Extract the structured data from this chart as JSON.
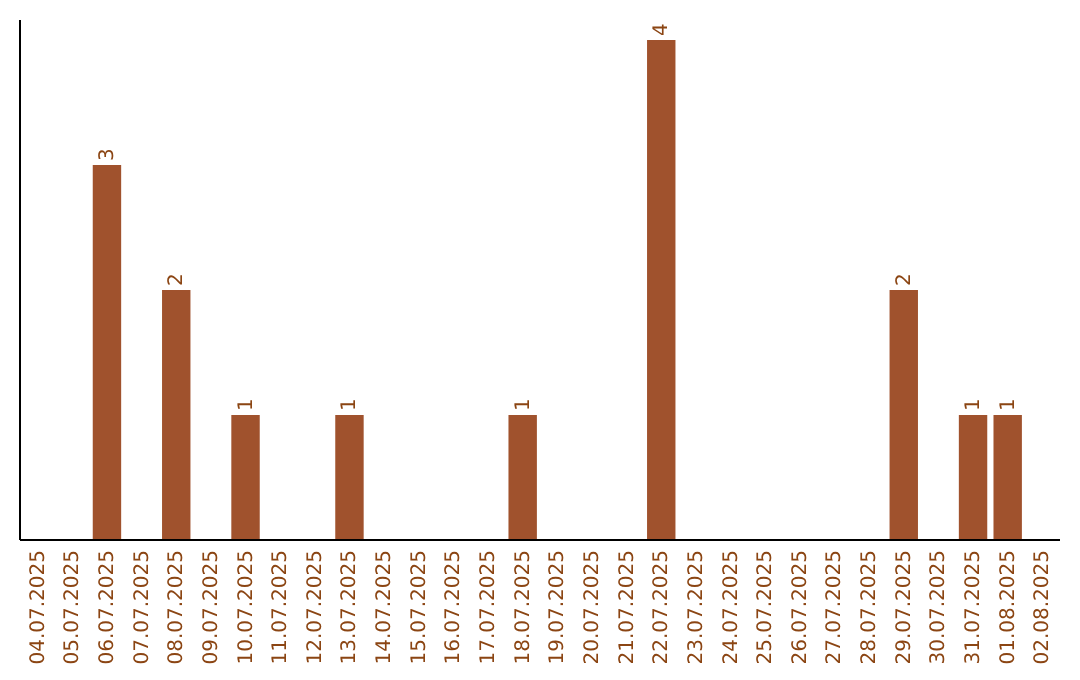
{
  "chart_data": {
    "type": "bar",
    "categories": [
      "04.07.2025",
      "05.07.2025",
      "06.07.2025",
      "07.07.2025",
      "08.07.2025",
      "09.07.2025",
      "10.07.2025",
      "11.07.2025",
      "12.07.2025",
      "13.07.2025",
      "14.07.2025",
      "15.07.2025",
      "16.07.2025",
      "17.07.2025",
      "18.07.2025",
      "19.07.2025",
      "20.07.2025",
      "21.07.2025",
      "22.07.2025",
      "23.07.2025",
      "24.07.2025",
      "25.07.2025",
      "26.07.2025",
      "27.07.2025",
      "28.07.2025",
      "29.07.2025",
      "30.07.2025",
      "31.07.2025",
      "01.08.2025",
      "02.08.2025"
    ],
    "values": [
      null,
      null,
      3,
      null,
      2,
      null,
      1,
      null,
      null,
      1,
      null,
      null,
      null,
      null,
      1,
      null,
      null,
      null,
      4,
      null,
      null,
      null,
      null,
      null,
      null,
      2,
      null,
      1,
      1,
      null
    ],
    "color": "#a0522d",
    "data_labels": true,
    "tick_labels": "x"
  }
}
